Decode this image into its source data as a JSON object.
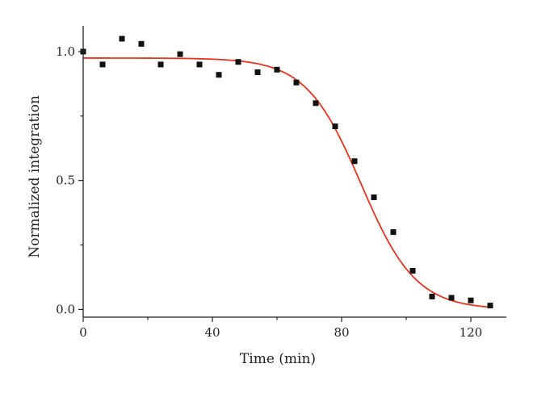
{
  "chart_data": {
    "type": "scatter",
    "title": "",
    "xlabel": "Time (min)",
    "ylabel": "Normalized integration",
    "xlim": [
      0,
      131
    ],
    "ylim": [
      -0.03,
      1.1
    ],
    "xticks": [
      0,
      40,
      80,
      120
    ],
    "xtick_labels": [
      "0",
      "40",
      "80",
      "120"
    ],
    "yticks": [
      0.0,
      0.5,
      1.0
    ],
    "ytick_labels": [
      "0.0",
      "0.5",
      "1.0"
    ],
    "grid": false,
    "legend": "none",
    "series": [
      {
        "marker": "square",
        "color": "#111111",
        "x": [
          0,
          6,
          12,
          18,
          24,
          30,
          36,
          42,
          48,
          54,
          60,
          66,
          72,
          78,
          84,
          90,
          96,
          102,
          108,
          114,
          120,
          126
        ],
        "y": [
          1.0,
          0.95,
          1.05,
          1.03,
          0.95,
          0.99,
          0.95,
          0.91,
          0.96,
          0.92,
          0.93,
          0.88,
          0.8,
          0.71,
          0.575,
          0.435,
          0.3,
          0.15,
          0.05,
          0.045,
          0.035,
          0.015
        ]
      },
      {
        "type": "line",
        "color": "#e8321e",
        "fit": "sigmoid",
        "top": 0.975,
        "bottom": 0.0,
        "x0": 86,
        "dx": 8.5,
        "x_start": 0,
        "x_end": 126
      }
    ]
  }
}
